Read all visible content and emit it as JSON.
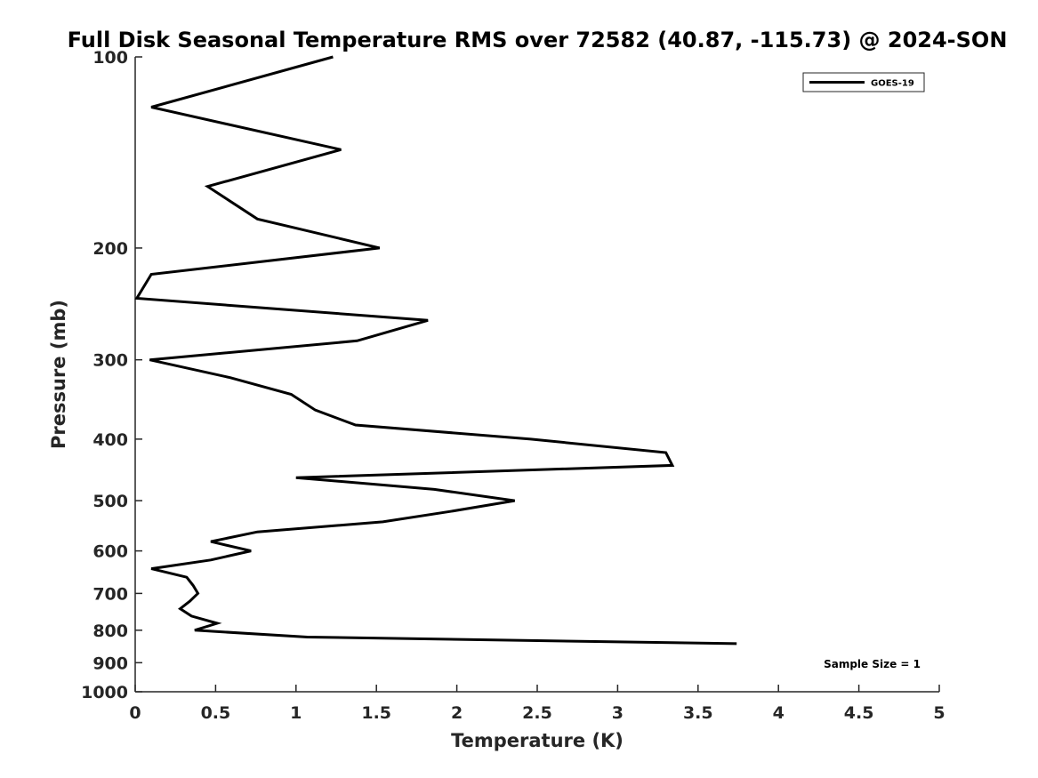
{
  "chart_data": {
    "type": "line",
    "title": "Full Disk Seasonal Temperature RMS over 72582 (40.87, -115.73) @ 2024-SON",
    "xlabel": "Temperature (K)",
    "ylabel": "Pressure (mb)",
    "xlim": [
      0,
      5
    ],
    "ylim": [
      1000,
      100
    ],
    "yscale": "log",
    "y_reversed": true,
    "grid": false,
    "legend_position": "top-right",
    "x_ticks": [
      0,
      0.5,
      1,
      1.5,
      2,
      2.5,
      3,
      3.5,
      4,
      4.5,
      5
    ],
    "x_tick_labels": [
      "0",
      "0.5",
      "1",
      "1.5",
      "2",
      "2.5",
      "3",
      "3.5",
      "4",
      "4.5",
      "5"
    ],
    "y_ticks": [
      100,
      200,
      300,
      400,
      500,
      600,
      700,
      800,
      900,
      1000
    ],
    "y_tick_labels": [
      "100",
      "200",
      "300",
      "400",
      "500",
      "600",
      "700",
      "800",
      "900",
      "1000"
    ],
    "series": [
      {
        "name": "GOES-19",
        "color": "#000000",
        "points": [
          {
            "pressure": 100,
            "value": 1.23
          },
          {
            "pressure": 120,
            "value": 0.1
          },
          {
            "pressure": 140,
            "value": 1.28
          },
          {
            "pressure": 160,
            "value": 0.45
          },
          {
            "pressure": 180,
            "value": 0.76
          },
          {
            "pressure": 200,
            "value": 1.52
          },
          {
            "pressure": 220,
            "value": 0.1
          },
          {
            "pressure": 240,
            "value": 0.01
          },
          {
            "pressure": 260,
            "value": 1.82
          },
          {
            "pressure": 280,
            "value": 1.38
          },
          {
            "pressure": 300,
            "value": 0.09
          },
          {
            "pressure": 320,
            "value": 0.59
          },
          {
            "pressure": 340,
            "value": 0.97
          },
          {
            "pressure": 360,
            "value": 1.12
          },
          {
            "pressure": 380,
            "value": 1.37
          },
          {
            "pressure": 400,
            "value": 2.46
          },
          {
            "pressure": 420,
            "value": 3.3
          },
          {
            "pressure": 440,
            "value": 3.34
          },
          {
            "pressure": 460,
            "value": 1.0
          },
          {
            "pressure": 480,
            "value": 1.86
          },
          {
            "pressure": 500,
            "value": 2.36
          },
          {
            "pressure": 520,
            "value": 1.96
          },
          {
            "pressure": 540,
            "value": 1.54
          },
          {
            "pressure": 560,
            "value": 0.76
          },
          {
            "pressure": 580,
            "value": 0.47
          },
          {
            "pressure": 600,
            "value": 0.72
          },
          {
            "pressure": 620,
            "value": 0.47
          },
          {
            "pressure": 640,
            "value": 0.1
          },
          {
            "pressure": 660,
            "value": 0.32
          },
          {
            "pressure": 680,
            "value": 0.36
          },
          {
            "pressure": 700,
            "value": 0.39
          },
          {
            "pressure": 720,
            "value": 0.34
          },
          {
            "pressure": 740,
            "value": 0.28
          },
          {
            "pressure": 760,
            "value": 0.35
          },
          {
            "pressure": 780,
            "value": 0.51
          },
          {
            "pressure": 800,
            "value": 0.37
          },
          {
            "pressure": 820,
            "value": 1.07
          },
          {
            "pressure": 840,
            "value": 3.74
          }
        ]
      }
    ],
    "annotation": "Sample Size = 1"
  }
}
